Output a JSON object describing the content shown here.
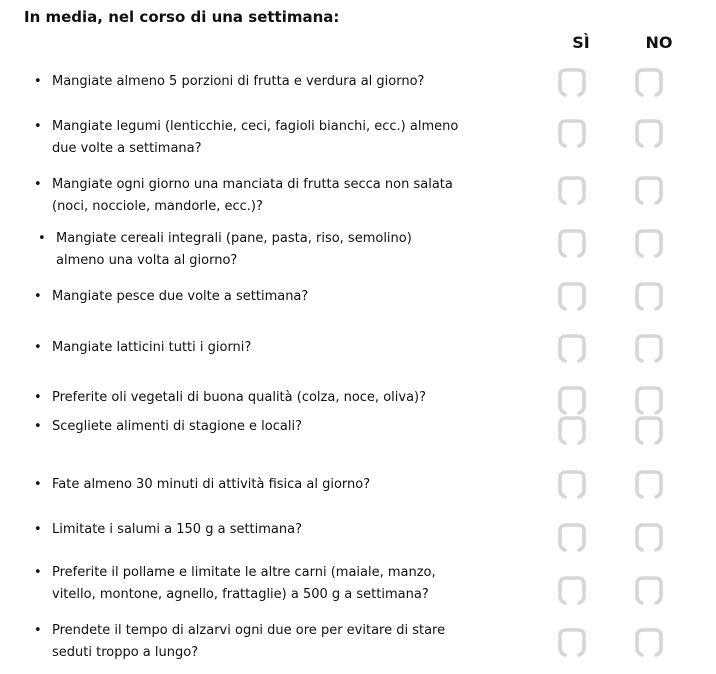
{
  "title": "In media, nel corso di una settimana:",
  "columns": {
    "yes": "SÌ",
    "no": "NO"
  },
  "checkbox_color": "#d6d6d6",
  "questions": [
    {
      "lines": [
        "Mangiate almeno 5 porzioni di frutta e verdura al giorno?"
      ]
    },
    {
      "lines": [
        "Mangiate legumi (lenticchie, ceci, fagioli bianchi, ecc.) almeno",
        "due volte a settimana?"
      ]
    },
    {
      "lines": [
        "Mangiate ogni giorno una manciata di frutta secca non salata",
        "(noci, nocciole, mandorle, ecc.)?"
      ]
    },
    {
      "lines": [
        "Mangiate cereali integrali (pane, pasta, riso, semolino)",
        "almeno una volta al giorno?"
      ]
    },
    {
      "lines": [
        "Mangiate pesce due volte a settimana?"
      ]
    },
    {
      "lines": [
        "Mangiate latticini tutti i giorni?"
      ]
    },
    {
      "lines": [
        "Preferite oli vegetali di buona qualità (colza, noce, oliva)?"
      ]
    },
    {
      "lines": [
        "Scegliete alimenti di stagione e locali?"
      ]
    },
    {
      "lines": [
        "Fate almeno 30 minuti di attività fisica al giorno?"
      ]
    },
    {
      "lines": [
        "Limitate i salumi a 150 g a settimana?"
      ]
    },
    {
      "lines": [
        "Preferite il pollame e limitate le altre carni (maiale, manzo,",
        "vitello, montone, agnello, frattaglie) a 500 g a settimana?"
      ]
    },
    {
      "lines": [
        "Prendete il tempo di alzarvi ogni due ore per evitare di stare",
        "seduti troppo a lungo?"
      ]
    }
  ]
}
